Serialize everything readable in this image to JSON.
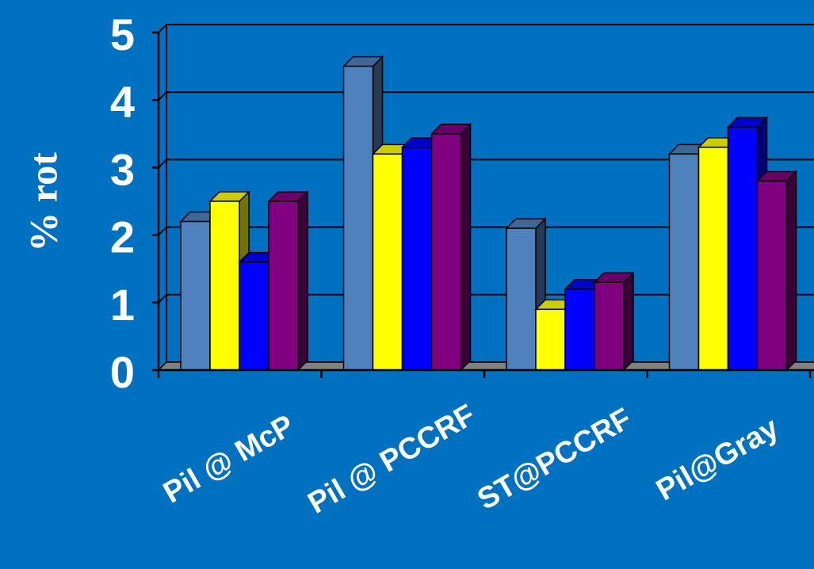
{
  "chart_data": {
    "type": "bar",
    "title": "",
    "ylabel": "% rot",
    "xlabel": "",
    "ylim": [
      0,
      5
    ],
    "yticks": [
      "0",
      "1",
      "2",
      "3",
      "4",
      "5"
    ],
    "categories": [
      "Pil @ McP",
      "Pil @ PCCRF",
      "ST@PCCRF",
      "Pil@Gray"
    ],
    "series": [
      {
        "values": [
          2.2,
          4.5,
          2.1,
          3.2
        ]
      },
      {
        "values": [
          2.5,
          3.2,
          0.9,
          3.3
        ]
      },
      {
        "values": [
          1.6,
          3.3,
          1.2,
          3.6
        ]
      },
      {
        "values": [
          2.5,
          3.5,
          1.3,
          2.8
        ]
      }
    ],
    "grid": true,
    "legend": "none",
    "three_d": true
  },
  "colors": {
    "background": "#0070C0",
    "series": [
      "#4F81BD",
      "#FFFF00",
      "#0000FF",
      "#800080"
    ],
    "gridline": "#000000",
    "text": "#FFFFFF"
  }
}
